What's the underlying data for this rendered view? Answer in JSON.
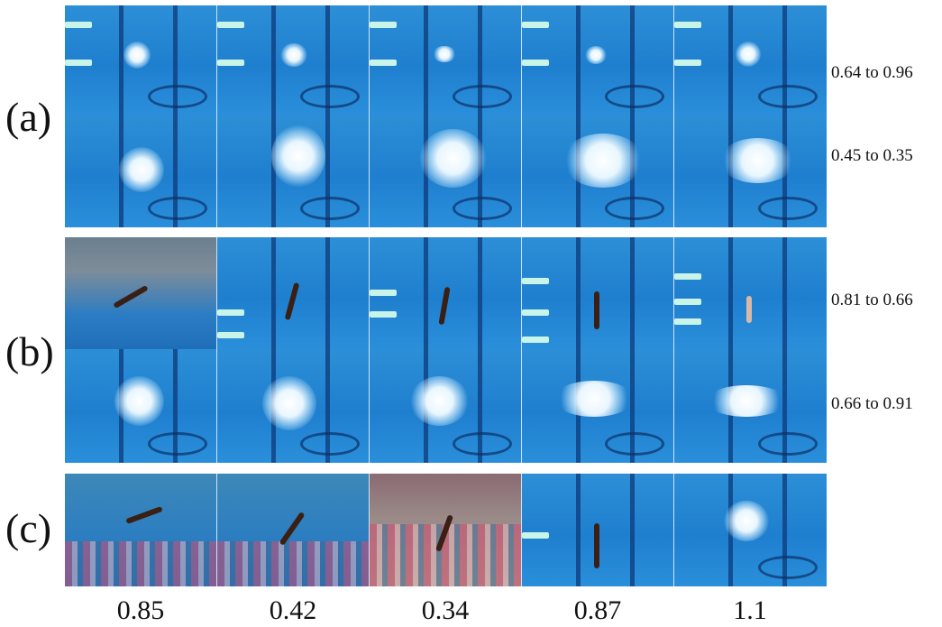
{
  "panels": [
    {
      "label": "(a)",
      "rows": [
        {
          "range": "0.64 to 0.96"
        },
        {
          "range": "0.45 to 0.35"
        }
      ]
    },
    {
      "label": "(b)",
      "rows": [
        {
          "range": "0.81 to 0.66"
        },
        {
          "range": "0.66 to 0.91"
        }
      ]
    },
    {
      "label": "(c)",
      "rows": [
        {
          "range": ""
        }
      ]
    }
  ],
  "scores": [
    "0.85",
    "0.42",
    "0.34",
    "0.87",
    "1.1"
  ]
}
